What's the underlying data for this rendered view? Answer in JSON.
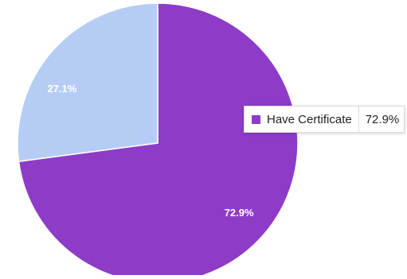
{
  "chart_data": {
    "type": "pie",
    "slices": [
      {
        "name": "Have Certificate",
        "value": 72.9,
        "label": "72.9%",
        "color": "#8e3cc8"
      },
      {
        "name": "",
        "value": 27.1,
        "label": "27.1%",
        "color": "#b5cdf5"
      }
    ],
    "start_angle_deg": 0,
    "direction": "clockwise",
    "legend": "none"
  },
  "tooltip": {
    "series_name": "Have Certificate",
    "value_text": "72.9%",
    "swatch_color": "#8e3cc8"
  }
}
